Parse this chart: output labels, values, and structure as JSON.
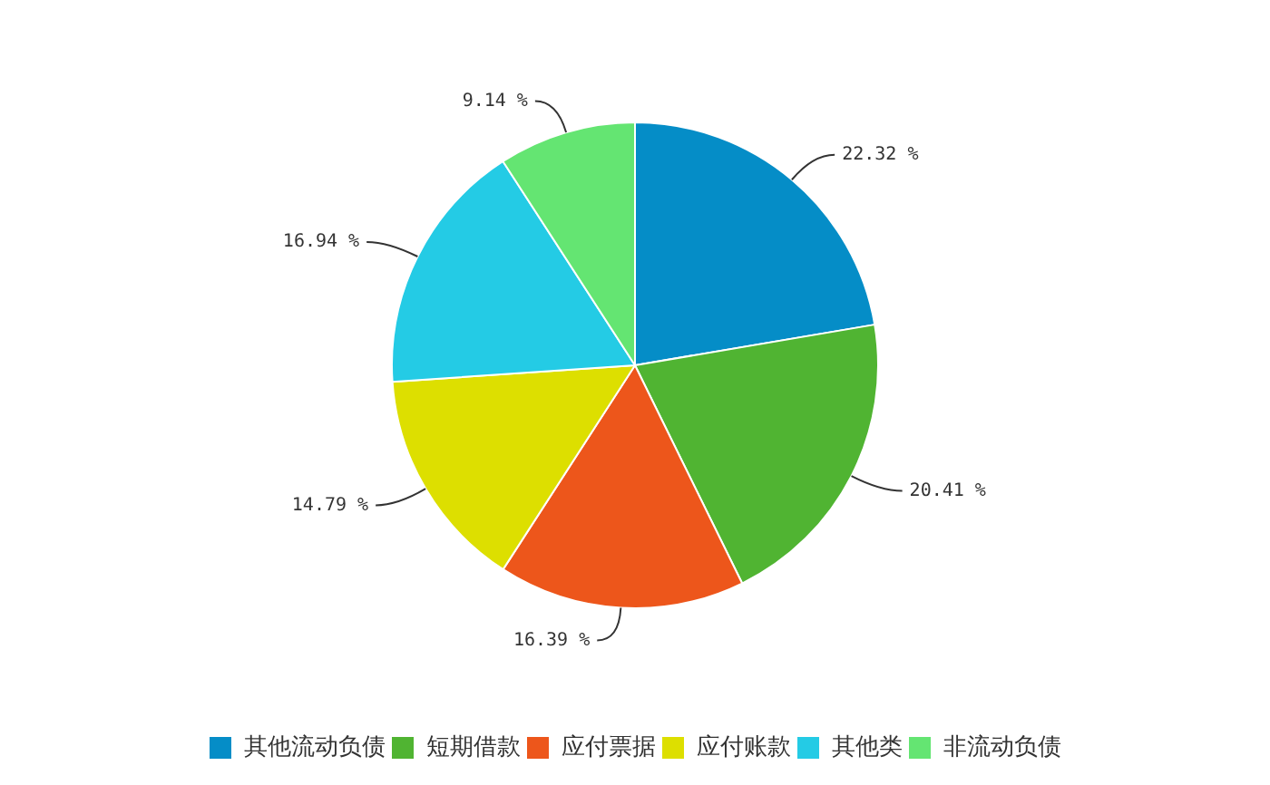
{
  "chart_data": {
    "type": "pie",
    "categories": [
      "其他流动负债",
      "短期借款",
      "应付票据",
      "应付账款",
      "其他类",
      "非流动负债"
    ],
    "values": [
      22.32,
      20.41,
      16.39,
      14.79,
      16.94,
      9.14
    ],
    "value_labels": [
      "22.32 %",
      "20.41 %",
      "16.39 %",
      "14.79 %",
      "16.94 %",
      "9.14 %"
    ],
    "colors": [
      "#058dc7",
      "#50b432",
      "#ed561b",
      "#dddf00",
      "#24cbe5",
      "#64e572"
    ],
    "legend": "bottom"
  }
}
